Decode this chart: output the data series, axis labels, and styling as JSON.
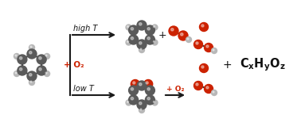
{
  "bg_color": "#ffffff",
  "dark_atom": "#5a5a5a",
  "light_atom": "#b8b8b8",
  "red_atom": "#cc2200",
  "bond_color": "#3a3a3a",
  "arrow_color": "#1a1a1a",
  "red_text": "#cc2200",
  "black_text": "#111111",
  "high_T_label": "high T",
  "low_T_label": "low T",
  "plus_O2_left": "+ O₂",
  "plus_O2_bottom": "+ O₂",
  "plus_sign": "+"
}
